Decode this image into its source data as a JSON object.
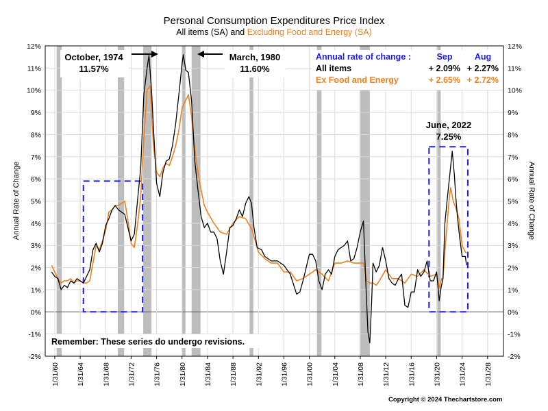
{
  "chart_data": {
    "type": "line",
    "title": "Personal Consumption Expenditures Price Index",
    "subtitle_prefix": "All items (SA) and ",
    "subtitle_highlight": "Excluding Food and Energy (SA)",
    "ylabel_left": "Annual Rate of Change",
    "ylabel_right": "Annual Rate of Change",
    "ylim": [
      -2,
      12
    ],
    "xlim": [
      1958.5,
      2030.5
    ],
    "yticks": [
      "-2%",
      "-1%",
      "0%",
      "1%",
      "2%",
      "3%",
      "4%",
      "5%",
      "6%",
      "7%",
      "8%",
      "9%",
      "10%",
      "11%",
      "12%"
    ],
    "xtick_labels": [
      "1/31/60",
      "1/31/64",
      "1/31/68",
      "1/31/72",
      "1/31/76",
      "1/31/80",
      "1/31/84",
      "1/31/88",
      "1/31/92",
      "1/31/96",
      "1/31/00",
      "1/31/04",
      "1/31/08",
      "1/31/12",
      "1/31/16",
      "1/31/20",
      "1/31/24",
      "1/31/28"
    ],
    "xtick_values": [
      1960,
      1964,
      1968,
      1972,
      1976,
      1980,
      1984,
      1988,
      1992,
      1996,
      2000,
      2004,
      2008,
      2012,
      2016,
      2020,
      2024,
      2028
    ],
    "recessions": [
      [
        1960.3,
        1961.1
      ],
      [
        1969.9,
        1970.9
      ],
      [
        1973.9,
        1975.2
      ],
      [
        1980.0,
        1980.5
      ],
      [
        1981.5,
        1982.9
      ],
      [
        1990.6,
        1991.2
      ],
      [
        2001.2,
        2001.9
      ],
      [
        2007.9,
        2009.5
      ],
      [
        2020.1,
        2020.4
      ]
    ],
    "series": [
      {
        "name": "All items",
        "color": "#000000",
        "x": [
          1959.5,
          1960.0,
          1960.5,
          1961.0,
          1961.5,
          1962.0,
          1962.5,
          1963.0,
          1963.5,
          1964.0,
          1964.5,
          1965.0,
          1965.5,
          1966.0,
          1966.5,
          1967.0,
          1967.5,
          1968.0,
          1968.5,
          1969.0,
          1969.5,
          1970.0,
          1970.5,
          1971.0,
          1971.5,
          1972.0,
          1972.5,
          1973.0,
          1973.5,
          1974.0,
          1974.5,
          1974.8,
          1975.2,
          1975.6,
          1976.0,
          1976.5,
          1977.0,
          1977.5,
          1978.0,
          1978.5,
          1979.0,
          1979.5,
          1980.0,
          1980.2,
          1980.6,
          1981.0,
          1981.5,
          1982.0,
          1982.5,
          1983.0,
          1983.5,
          1984.0,
          1984.5,
          1985.0,
          1985.5,
          1986.0,
          1986.5,
          1987.0,
          1987.5,
          1988.0,
          1988.5,
          1989.0,
          1989.5,
          1990.0,
          1990.5,
          1990.9,
          1991.3,
          1991.8,
          1992.5,
          1993.0,
          1994.0,
          1995.0,
          1996.0,
          1997.0,
          1998.0,
          1998.5,
          1999.0,
          1999.5,
          2000.0,
          2000.5,
          2001.0,
          2001.5,
          2002.0,
          2002.5,
          2003.0,
          2003.5,
          2004.0,
          2004.5,
          2005.0,
          2005.5,
          2006.0,
          2006.5,
          2007.0,
          2007.5,
          2008.0,
          2008.5,
          2008.9,
          2009.2,
          2009.5,
          2009.8,
          2010.0,
          2010.5,
          2011.0,
          2011.5,
          2012.0,
          2012.5,
          2013.0,
          2013.5,
          2014.0,
          2014.5,
          2015.0,
          2015.5,
          2016.0,
          2016.5,
          2017.0,
          2017.5,
          2018.0,
          2018.5,
          2019.0,
          2019.5,
          2020.0,
          2020.4,
          2020.7,
          2021.0,
          2021.3,
          2021.6,
          2022.0,
          2022.45,
          2022.8,
          2023.0,
          2023.3,
          2023.6,
          2024.0,
          2024.5,
          2024.7
        ],
        "y": [
          1.8,
          1.6,
          1.5,
          1.0,
          1.2,
          1.1,
          1.4,
          1.3,
          1.5,
          1.4,
          1.3,
          1.6,
          1.9,
          2.8,
          3.1,
          2.7,
          3.1,
          3.9,
          4.2,
          4.6,
          4.8,
          4.6,
          4.5,
          4.4,
          3.8,
          3.2,
          3.5,
          5.0,
          6.5,
          9.8,
          11.0,
          11.57,
          10.0,
          7.8,
          5.8,
          5.2,
          6.3,
          6.8,
          6.9,
          7.5,
          8.5,
          9.8,
          11.2,
          11.6,
          10.9,
          10.8,
          9.5,
          6.8,
          5.5,
          4.3,
          3.8,
          4.0,
          3.6,
          3.6,
          3.3,
          2.3,
          1.7,
          2.7,
          3.8,
          3.9,
          4.2,
          4.6,
          4.3,
          4.9,
          5.2,
          4.9,
          3.8,
          2.9,
          2.8,
          2.5,
          2.3,
          2.3,
          2.1,
          1.7,
          0.8,
          0.9,
          1.4,
          2.0,
          2.6,
          2.6,
          2.3,
          1.4,
          1.0,
          1.7,
          1.9,
          1.7,
          2.5,
          2.8,
          2.9,
          3.0,
          3.2,
          2.3,
          2.4,
          2.9,
          3.6,
          4.1,
          1.1,
          -0.9,
          -1.4,
          0.6,
          2.2,
          1.8,
          2.1,
          2.9,
          2.3,
          1.5,
          1.3,
          1.2,
          1.5,
          1.7,
          0.3,
          0.2,
          0.9,
          0.9,
          1.9,
          1.6,
          1.8,
          2.3,
          1.4,
          1.4,
          1.8,
          0.5,
          1.1,
          1.5,
          4.0,
          4.9,
          6.0,
          7.25,
          6.1,
          5.2,
          4.2,
          3.4,
          2.5,
          2.5,
          2.1
        ]
      },
      {
        "name": "Ex Food and Energy",
        "color": "#f07f1e",
        "x": [
          1959.5,
          1960.0,
          1960.5,
          1961.0,
          1961.5,
          1962.0,
          1962.5,
          1963.0,
          1963.5,
          1964.0,
          1964.5,
          1965.0,
          1965.5,
          1966.0,
          1966.5,
          1967.0,
          1967.5,
          1968.0,
          1968.5,
          1969.0,
          1969.5,
          1970.0,
          1970.5,
          1971.0,
          1971.5,
          1972.0,
          1972.5,
          1973.0,
          1973.5,
          1974.0,
          1974.5,
          1975.0,
          1975.5,
          1976.0,
          1976.5,
          1977.0,
          1977.5,
          1978.0,
          1978.5,
          1979.0,
          1979.5,
          1980.0,
          1980.5,
          1981.0,
          1981.5,
          1982.0,
          1982.5,
          1983.0,
          1983.5,
          1984.0,
          1985.0,
          1986.0,
          1987.0,
          1988.0,
          1989.0,
          1990.0,
          1991.0,
          1992.0,
          1993.0,
          1994.0,
          1995.0,
          1996.0,
          1997.0,
          1998.0,
          1999.0,
          2000.0,
          2001.0,
          2002.0,
          2003.0,
          2004.0,
          2005.0,
          2006.0,
          2007.0,
          2008.0,
          2008.5,
          2009.0,
          2009.5,
          2010.0,
          2010.5,
          2011.0,
          2012.0,
          2013.0,
          2014.0,
          2015.0,
          2016.0,
          2017.0,
          2018.0,
          2019.0,
          2020.0,
          2020.4,
          2020.8,
          2021.0,
          2021.4,
          2021.8,
          2022.0,
          2022.2,
          2022.6,
          2023.0,
          2023.5,
          2024.0,
          2024.5,
          2024.7
        ],
        "y": [
          2.1,
          1.8,
          1.5,
          1.3,
          1.4,
          1.4,
          1.5,
          1.3,
          1.4,
          1.4,
          1.3,
          1.3,
          1.4,
          2.2,
          3.0,
          2.8,
          3.2,
          3.7,
          4.5,
          4.6,
          4.8,
          4.8,
          4.9,
          5.0,
          4.1,
          3.1,
          2.9,
          3.9,
          5.2,
          7.8,
          10.0,
          10.2,
          7.5,
          6.3,
          6.1,
          6.5,
          6.7,
          6.6,
          7.0,
          7.5,
          8.2,
          9.2,
          9.5,
          9.8,
          8.8,
          7.3,
          6.3,
          5.5,
          4.8,
          4.5,
          4.0,
          3.6,
          3.5,
          4.0,
          4.3,
          4.2,
          3.7,
          2.7,
          2.4,
          2.2,
          2.2,
          1.8,
          1.8,
          1.4,
          1.5,
          1.7,
          1.9,
          1.7,
          1.4,
          2.2,
          2.2,
          2.3,
          2.2,
          2.2,
          2.2,
          1.4,
          1.3,
          1.3,
          1.2,
          1.4,
          1.9,
          1.5,
          1.5,
          1.3,
          1.7,
          1.6,
          1.9,
          1.6,
          1.7,
          1.1,
          1.5,
          1.5,
          3.1,
          4.5,
          5.2,
          5.6,
          5.0,
          4.7,
          4.2,
          3.0,
          2.7,
          2.65
        ]
      }
    ],
    "annotations": [
      {
        "line1": "October, 1974",
        "line2": "11.57%"
      },
      {
        "line1": "March, 1980",
        "line2": "11.60%"
      },
      {
        "line1": "June, 2022",
        "line2": "7.25%"
      }
    ],
    "dashed_boxes": [
      {
        "x0": 1964.5,
        "x1": 1973.8,
        "y0": 0,
        "y1": 5.9
      },
      {
        "x0": 2018.8,
        "x1": 2024.9,
        "y0": 0,
        "y1": 7.45
      }
    ],
    "legend_table": {
      "header_label": "Annual rate of change :",
      "col1": "Sep",
      "col2": "Aug",
      "rows": [
        {
          "label": "All items",
          "v1": "+ 2.09%",
          "v2": "+ 2.27%",
          "color": "#000000"
        },
        {
          "label": "Ex Food and Energy",
          "v1": "+ 2.65%",
          "v2": "+ 2.72%",
          "color": "#f07f1e"
        }
      ]
    },
    "note": "Remember:  These series do undergo revisions.",
    "copyright": "Copyright © 2024 Thechartstore.com",
    "grid": true
  }
}
